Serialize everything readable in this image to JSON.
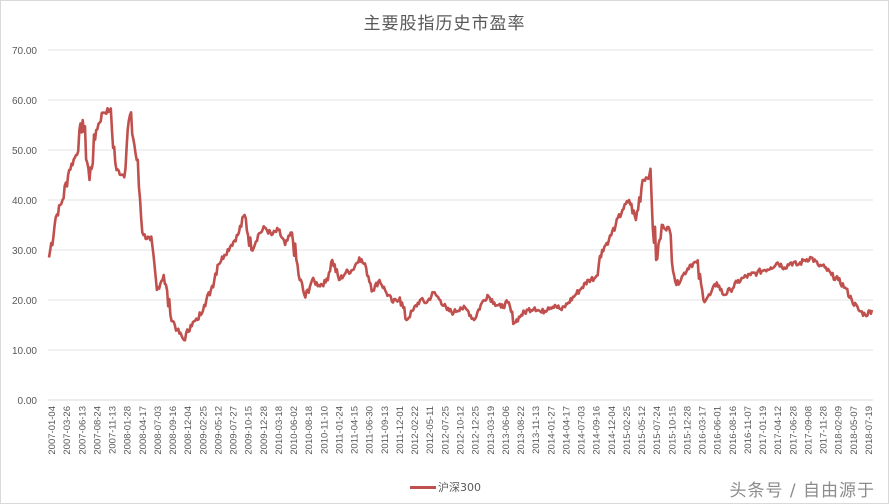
{
  "chart_data": {
    "type": "line",
    "title": "主要股指历史市盈率",
    "xlabel": "",
    "ylabel": "",
    "ylim": [
      0,
      70
    ],
    "yticks": [
      "0.00",
      "10.00",
      "20.00",
      "30.00",
      "40.00",
      "50.00",
      "60.00",
      "70.00"
    ],
    "grid": true,
    "legend_position": "bottom",
    "x_tick_labels": [
      "2007-01-04",
      "2007-03-26",
      "2007-06-13",
      "2007-08-24",
      "2007-11-13",
      "2008-01-28",
      "2008-04-17",
      "2008-07-03",
      "2008-09-16",
      "2008-12-04",
      "2009-02-25",
      "2009-05-12",
      "2009-07-27",
      "2009-10-15",
      "2009-12-28",
      "2010-03-18",
      "2010-06-02",
      "2010-08-18",
      "2010-11-10",
      "2011-01-24",
      "2011-04-15",
      "2011-06-30",
      "2011-09-13",
      "2011-12-01",
      "2012-02-22",
      "2012-05-11",
      "2012-07-25",
      "2012-10-12",
      "2012-12-25",
      "2013-03-19",
      "2013-06-06",
      "2013-08-22",
      "2013-11-13",
      "2014-01-27",
      "2014-04-17",
      "2014-07-03",
      "2014-09-16",
      "2014-12-04",
      "2015-02-25",
      "2015-05-12",
      "2015-07-24",
      "2015-10-15",
      "2015-12-28",
      "2016-03-17",
      "2016-06-01",
      "2016-08-16",
      "2016-11-07",
      "2017-01-19",
      "2017-04-12",
      "2017-06-28",
      "2017-09-08",
      "2017-11-28",
      "2018-02-09",
      "2018-05-07",
      "2018-07-19"
    ],
    "series": [
      {
        "name": "沪深300",
        "color": "#c0504d",
        "values": [
          28.5,
          36.5,
          40.0,
          46.0,
          49.0,
          56.0,
          44.0,
          54.0,
          57.5,
          58.0,
          46.0,
          45.0,
          57.0,
          48.0,
          33.0,
          32.0,
          22.0,
          25.0,
          17.0,
          14.0,
          12.0,
          15.0,
          16.0,
          19.0,
          22.0,
          27.0,
          29.0,
          31.0,
          33.0,
          37.0,
          30.0,
          33.0,
          34.5,
          33.0,
          34.0,
          31.0,
          33.5,
          25.0,
          20.5,
          24.0,
          23.0,
          23.5,
          28.0,
          24.0,
          25.5,
          26.0,
          28.5,
          26.5,
          22.0,
          24.0,
          21.5,
          19.5,
          20.5,
          16.0,
          18.0,
          20.0,
          19.5,
          21.5,
          20.0,
          18.0,
          17.5,
          18.5,
          18.0,
          16.0,
          19.0,
          21.0,
          19.5,
          18.5,
          19.5,
          15.5,
          17.0,
          18.0,
          18.5,
          17.5,
          18.5,
          19.0,
          18.0,
          19.5,
          21.0,
          22.5,
          24.0,
          24.5,
          30.0,
          32.0,
          35.0,
          38.0,
          40.0,
          36.0,
          44.0,
          45.0,
          28.0,
          35.0,
          34.0,
          23.0,
          25.0,
          27.0,
          27.5,
          20.0,
          21.0,
          23.5,
          21.0,
          22.0,
          23.5,
          24.5,
          25.0,
          25.5,
          26.0,
          26.5,
          27.5,
          26.5,
          27.5,
          27.0,
          28.0,
          28.5,
          27.0,
          26.5,
          25.0,
          24.0,
          22.5,
          20.0,
          18.0,
          17.0,
          18.0
        ]
      }
    ]
  },
  "legend": {
    "label": "沪深300"
  },
  "watermark": "头条号 / 自由源于"
}
